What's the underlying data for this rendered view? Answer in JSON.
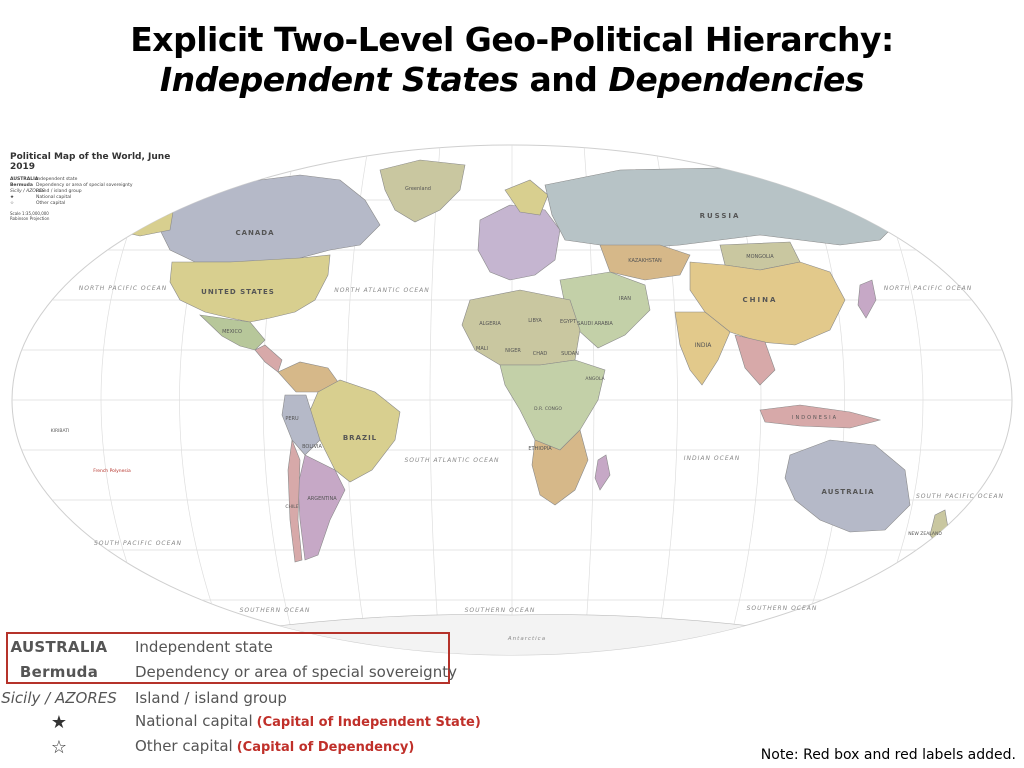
{
  "title": {
    "line1": "Explicit Two-Level Geo-Political Hierarchy:",
    "line2_part1": "Independent States",
    "line2_part2": " and ",
    "line2_part3": "Dependencies"
  },
  "map": {
    "inset_title": "Political Map of the World, June 2019",
    "inset_legend": [
      {
        "key": "AUSTRALIA",
        "text": "Independent state"
      },
      {
        "key": "Bermuda",
        "text": "Dependency or area of special sovereignty"
      },
      {
        "key": "Sicily / AZORES",
        "text": "Island / island group"
      },
      {
        "key": "★",
        "text": "National capital"
      },
      {
        "key": "☆",
        "text": "Other capital"
      }
    ],
    "scale_text": "Scale 1:35,000,000",
    "projection_text": "Robinson Projection",
    "country_labels": [
      "CANADA",
      "UNITED STATES",
      "RUSSIA",
      "CHINA",
      "BRAZIL",
      "AUSTRALIA",
      "KAZAKHSTAN",
      "MONGOLIA",
      "INDIA",
      "ALGERIA",
      "LIBYA",
      "EGYPT",
      "SUDAN",
      "NIGER",
      "CHAD",
      "ARGENTINA",
      "NEW ZEALAND",
      "INDONESIA",
      "Greenland",
      "PERU",
      "BOLIVIA",
      "MEXICO",
      "CHILE",
      "IRAN",
      "SAUDI ARABIA",
      "MALI",
      "ANGOLA",
      "ETHIOPIA",
      "D.R. CONGO"
    ],
    "ocean_labels": [
      "NORTH PACIFIC OCEAN",
      "NORTH PACIFIC OCEAN",
      "NORTH ATLANTIC OCEAN",
      "SOUTH PACIFIC OCEAN",
      "SOUTH ATLANTIC OCEAN",
      "INDIAN OCEAN",
      "SOUTH PACIFIC OCEAN",
      "SOUTHERN OCEAN",
      "SOUTHERN OCEAN",
      "SOUTHERN OCEAN",
      "Antarctica"
    ],
    "other_labels": [
      "KIRIBATI",
      "French Polynesia"
    ]
  },
  "legend": {
    "rows": [
      {
        "key": "AUSTRALIA",
        "text": "Independent state",
        "note": ""
      },
      {
        "key": "Bermuda",
        "text": "Dependency or area of special sovereignty",
        "note": ""
      },
      {
        "key": "Sicily / AZORES",
        "text": "Island / island group",
        "note": ""
      },
      {
        "key": "★",
        "text": "National capital",
        "note": "(Capital of Independent State)"
      },
      {
        "key": "☆",
        "text": "Other capital",
        "note": "(Capital of Dependency)"
      }
    ]
  },
  "note": "Note: Red box and red labels added.",
  "colors": {
    "highlight_red": "#b5322a",
    "ocean": "#ffffff",
    "grid": "#d9d9d9"
  }
}
